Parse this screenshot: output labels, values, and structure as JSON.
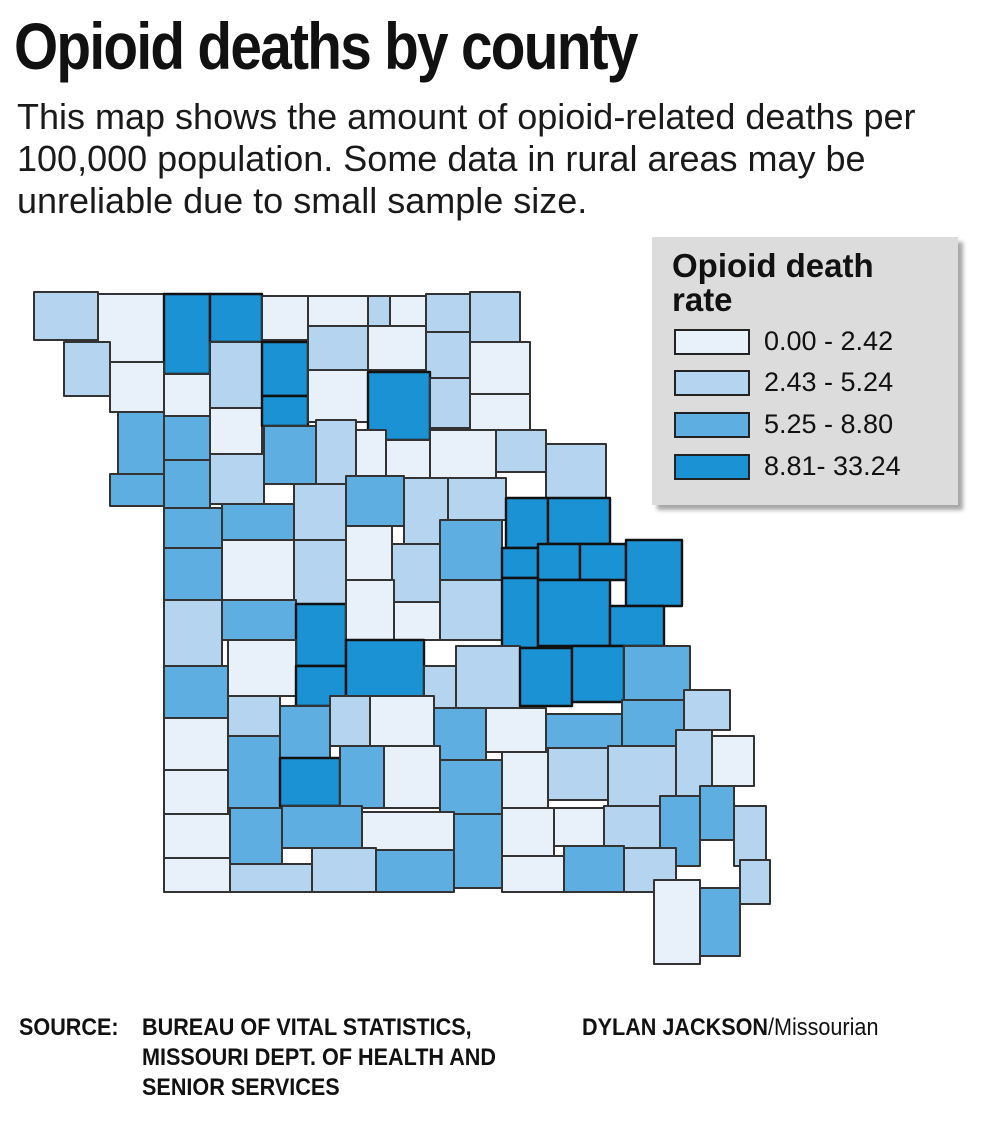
{
  "title": "Opioid deaths by county",
  "subtitle": "This map shows the amount of opioid-related deaths per 100,000 population. Some data in rural areas may be unreliable due to small sample size.",
  "legend": {
    "title": "Opioid death rate",
    "classes": [
      {
        "label": "0.00 - 2.42",
        "color": "#e8f1fa"
      },
      {
        "label": "2.43 - 5.24",
        "color": "#b4d4ef"
      },
      {
        "label": "5.25 - 8.80",
        "color": "#5eaee1"
      },
      {
        "label": "8.81- 33.24",
        "color": "#1b92d3"
      }
    ]
  },
  "map": {
    "state": "Missouri",
    "county_count": 115
  },
  "source": {
    "label": "SOURCE:",
    "text": "BUREAU OF VITAL STATISTICS, MISSOURI DEPT. OF HEALTH AND SENIOR SERVICES"
  },
  "credit": {
    "name": "DYLAN JACKSON",
    "outlet": "/Missourian"
  }
}
